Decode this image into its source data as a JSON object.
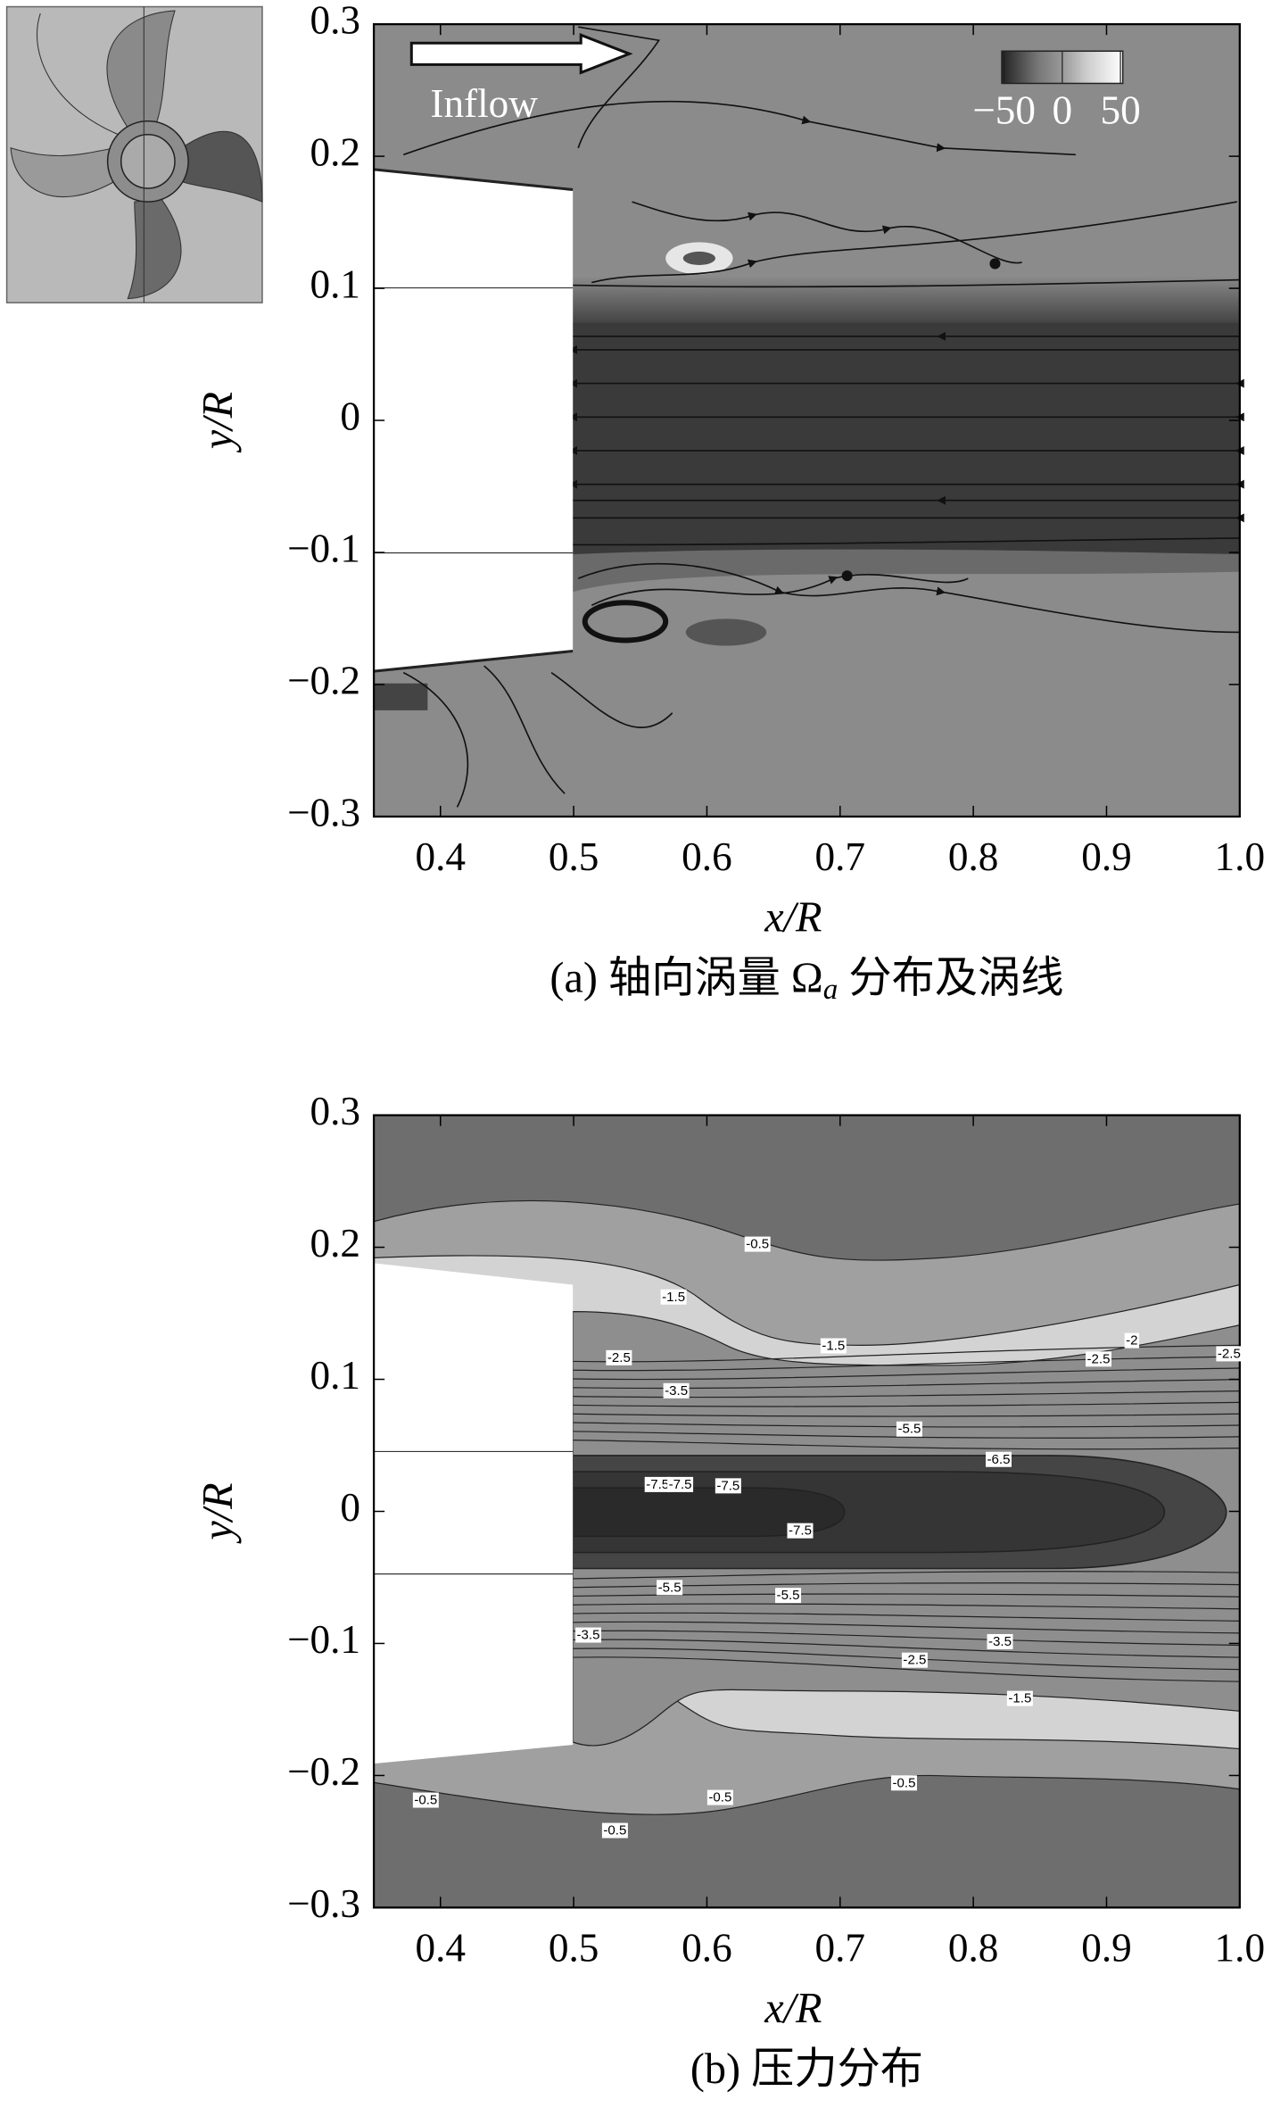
{
  "chart_data": [
    {
      "type": "contour",
      "xlabel": "x/R",
      "ylabel": "y/R",
      "caption": [
        "(a) 轴向涡量 Ω",
        "a",
        " 分布及涡线"
      ],
      "annotation": "Inflow",
      "xlim": [
        0.35,
        1.0
      ],
      "ylim": [
        -0.3,
        0.3
      ],
      "xticks": [
        0.4,
        0.5,
        0.6,
        0.7,
        0.8,
        0.9,
        {
          "value": 1.0,
          "label": "1.0"
        }
      ],
      "yticks": [
        {
          "value": -0.3,
          "label": "−0.3"
        },
        {
          "value": -0.2,
          "label": "−0.2"
        },
        {
          "value": -0.1,
          "label": "−0.1"
        },
        0,
        0.1,
        0.2,
        0.3
      ],
      "colorbar": {
        "lim": [
          -52,
          52
        ],
        "ticks": [
          {
            "value": -50,
            "label": "−50"
          },
          0,
          50
        ]
      }
    },
    {
      "type": "contour",
      "xlabel": "x/R",
      "ylabel": "y/R",
      "caption": [
        "(b) 压力分布"
      ],
      "xlim": [
        0.35,
        1.0
      ],
      "ylim": [
        -0.3,
        0.3
      ],
      "xticks": [
        0.4,
        0.5,
        0.6,
        0.7,
        0.8,
        0.9,
        {
          "value": 1.0,
          "label": "1.0"
        }
      ],
      "yticks": [
        {
          "value": -0.3,
          "label": "−0.3"
        },
        {
          "value": -0.2,
          "label": "−0.2"
        },
        {
          "value": -0.1,
          "label": "−0.1"
        },
        0,
        0.1,
        0.2,
        0.3
      ],
      "contour_labels": [
        {
          "x": 0.638,
          "y": 0.202,
          "value": -0.5
        },
        {
          "x": 0.575,
          "y": 0.162,
          "value": -1.5
        },
        {
          "x": 0.695,
          "y": 0.125,
          "value": -1.5
        },
        {
          "x": 0.534,
          "y": 0.116,
          "value": -2.5
        },
        {
          "x": 0.919,
          "y": 0.129,
          "value": -2
        },
        {
          "x": 0.894,
          "y": 0.115,
          "value": -2.5
        },
        {
          "x": 0.992,
          "y": 0.119,
          "value": -2.5
        },
        {
          "x": 0.577,
          "y": 0.091,
          "value": -3.5
        },
        {
          "x": 0.752,
          "y": 0.062,
          "value": -5.5
        },
        {
          "x": 0.819,
          "y": 0.039,
          "value": -6.5
        },
        {
          "x": 0.563,
          "y": 0.02,
          "value": -7.5
        },
        {
          "x": 0.58,
          "y": 0.02,
          "value": -7.5
        },
        {
          "x": 0.616,
          "y": 0.019,
          "value": -7.5
        },
        {
          "x": 0.67,
          "y": -0.015,
          "value": -7.5
        },
        {
          "x": 0.572,
          "y": -0.058,
          "value": -5.5
        },
        {
          "x": 0.661,
          "y": -0.064,
          "value": -5.5
        },
        {
          "x": 0.511,
          "y": -0.094,
          "value": -3.5
        },
        {
          "x": 0.82,
          "y": -0.099,
          "value": -3.5
        },
        {
          "x": 0.756,
          "y": -0.113,
          "value": -2.5
        },
        {
          "x": 0.835,
          "y": -0.142,
          "value": -1.5
        },
        {
          "x": 0.389,
          "y": -0.219,
          "value": -0.5
        },
        {
          "x": 0.531,
          "y": -0.242,
          "value": -0.5
        },
        {
          "x": 0.61,
          "y": -0.217,
          "value": -0.5
        },
        {
          "x": 0.748,
          "y": -0.206,
          "value": -0.5
        }
      ]
    }
  ]
}
